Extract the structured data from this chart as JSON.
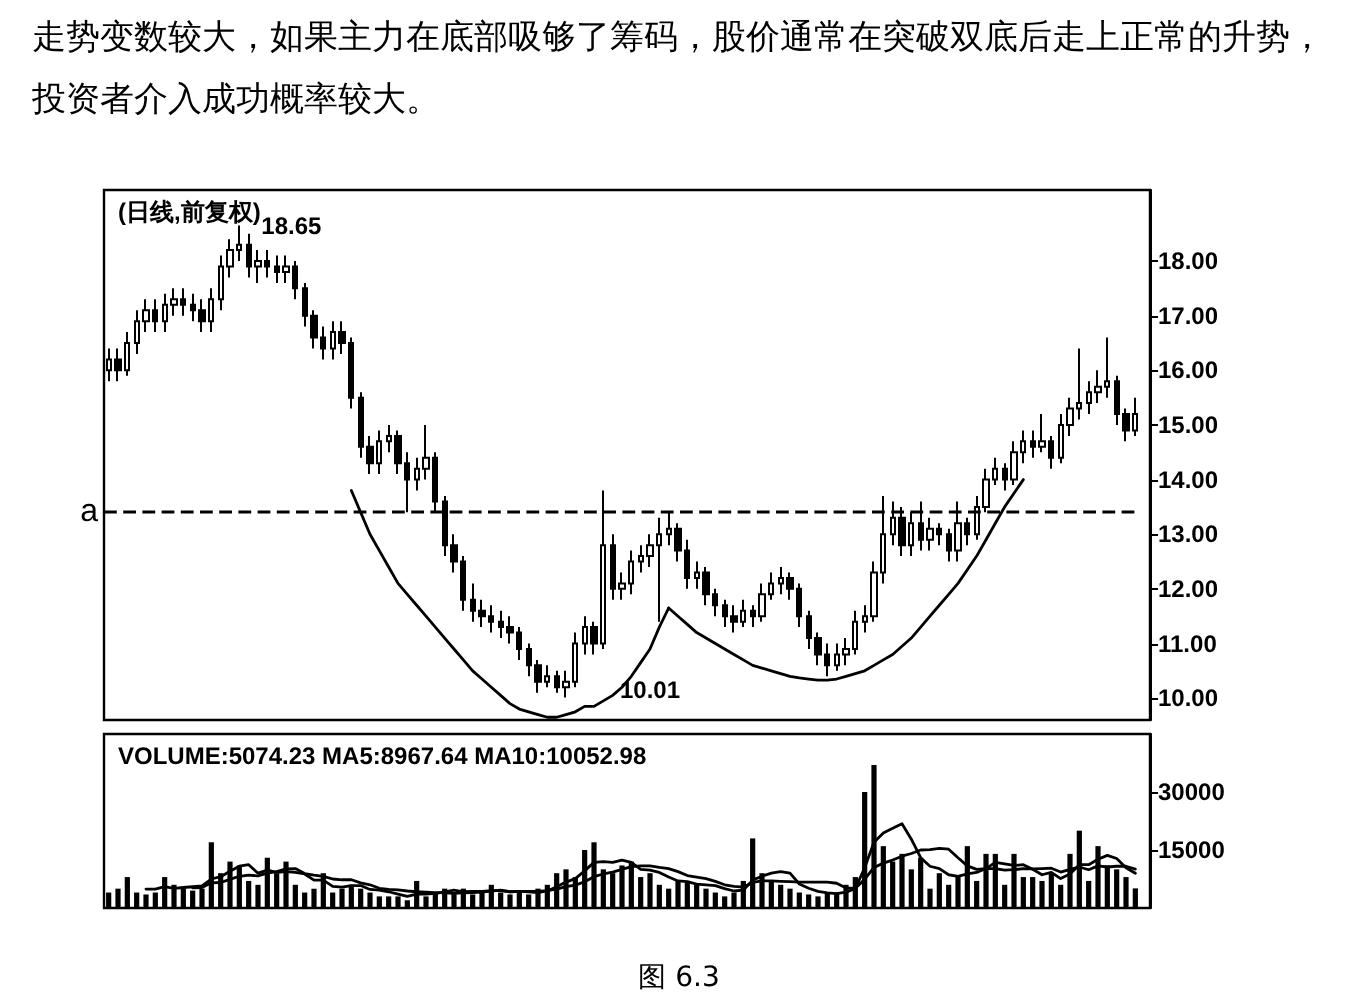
{
  "chart_data": [
    {
      "type": "candlestick",
      "title": "(日线,前复权)",
      "color": "#000000",
      "categories": [
        null,
        null,
        null,
        null,
        null,
        null,
        null,
        null,
        null,
        null,
        null,
        null,
        null,
        null,
        null,
        null,
        null,
        null,
        null,
        null,
        null,
        null,
        null,
        null,
        null,
        null,
        null,
        null,
        null,
        null,
        null,
        null,
        null,
        null,
        null,
        null,
        null,
        null,
        null,
        null,
        null,
        null,
        null,
        null,
        null,
        null,
        null,
        null,
        null,
        null,
        null,
        null,
        null,
        null,
        null,
        null,
        null,
        null,
        null,
        null,
        null,
        null,
        null,
        null,
        null,
        null,
        null,
        null,
        null,
        null,
        null,
        null,
        null,
        null,
        null,
        null,
        null,
        null,
        null,
        null,
        null,
        null,
        null,
        null,
        null,
        null,
        null,
        null,
        null,
        null,
        null,
        null,
        null,
        null,
        null,
        null,
        null,
        null,
        null,
        null,
        null,
        null,
        null,
        null,
        null,
        null,
        null,
        null,
        null,
        null,
        null
      ],
      "ohlc": [
        [
          16.0,
          16.4,
          15.8,
          16.2
        ],
        [
          16.2,
          16.4,
          15.8,
          16.0
        ],
        [
          16.0,
          16.7,
          15.9,
          16.5
        ],
        [
          16.5,
          17.1,
          16.3,
          16.9
        ],
        [
          16.9,
          17.3,
          16.7,
          17.1
        ],
        [
          17.1,
          17.3,
          16.7,
          16.9
        ],
        [
          16.9,
          17.4,
          16.7,
          17.2
        ],
        [
          17.2,
          17.5,
          17.0,
          17.3
        ],
        [
          17.3,
          17.5,
          17.0,
          17.2
        ],
        [
          17.2,
          17.4,
          16.9,
          17.1
        ],
        [
          17.1,
          17.3,
          16.7,
          16.9
        ],
        [
          16.9,
          17.5,
          16.7,
          17.3
        ],
        [
          17.3,
          18.1,
          17.1,
          17.9
        ],
        [
          17.9,
          18.4,
          17.7,
          18.2
        ],
        [
          18.2,
          18.65,
          18.0,
          18.3
        ],
        [
          18.3,
          18.5,
          17.7,
          17.9
        ],
        [
          17.9,
          18.2,
          17.6,
          18.0
        ],
        [
          18.0,
          18.2,
          17.7,
          17.9
        ],
        [
          17.9,
          18.1,
          17.6,
          17.8
        ],
        [
          17.8,
          18.1,
          17.6,
          17.9
        ],
        [
          17.9,
          18.0,
          17.3,
          17.5
        ],
        [
          17.5,
          17.6,
          16.8,
          17.0
        ],
        [
          17.0,
          17.1,
          16.4,
          16.6
        ],
        [
          16.6,
          16.8,
          16.2,
          16.4
        ],
        [
          16.4,
          16.9,
          16.2,
          16.7
        ],
        [
          16.7,
          16.9,
          16.3,
          16.5
        ],
        [
          16.5,
          16.6,
          15.3,
          15.5
        ],
        [
          15.5,
          15.6,
          14.4,
          14.6
        ],
        [
          14.6,
          14.8,
          14.1,
          14.3
        ],
        [
          14.3,
          14.9,
          14.1,
          14.7
        ],
        [
          14.7,
          15.0,
          14.5,
          14.8
        ],
        [
          14.8,
          14.9,
          14.1,
          14.3
        ],
        [
          14.3,
          14.5,
          13.4,
          14.0
        ],
        [
          14.0,
          14.4,
          13.8,
          14.2
        ],
        [
          14.2,
          15.0,
          14.0,
          14.4
        ],
        [
          14.4,
          14.5,
          13.4,
          13.6
        ],
        [
          13.6,
          13.7,
          12.6,
          12.8
        ],
        [
          12.8,
          13.0,
          12.3,
          12.5
        ],
        [
          12.5,
          12.6,
          11.6,
          11.8
        ],
        [
          11.8,
          12.1,
          11.4,
          11.6
        ],
        [
          11.6,
          11.8,
          11.3,
          11.5
        ],
        [
          11.5,
          11.7,
          11.2,
          11.4
        ],
        [
          11.4,
          11.6,
          11.1,
          11.3
        ],
        [
          11.3,
          11.5,
          11.0,
          11.2
        ],
        [
          11.2,
          11.3,
          10.7,
          10.9
        ],
        [
          10.9,
          11.0,
          10.4,
          10.6
        ],
        [
          10.6,
          10.7,
          10.1,
          10.3
        ],
        [
          10.3,
          10.6,
          10.2,
          10.4
        ],
        [
          10.4,
          10.5,
          10.1,
          10.2
        ],
        [
          10.2,
          10.5,
          10.01,
          10.3
        ],
        [
          10.3,
          11.2,
          10.2,
          11.0
        ],
        [
          11.0,
          11.5,
          10.8,
          11.3
        ],
        [
          11.3,
          11.4,
          10.8,
          11.0
        ],
        [
          11.0,
          13.8,
          10.9,
          12.8
        ],
        [
          12.8,
          13.0,
          11.8,
          12.0
        ],
        [
          12.0,
          12.3,
          11.8,
          12.1
        ],
        [
          12.1,
          12.7,
          11.9,
          12.5
        ],
        [
          12.5,
          12.8,
          12.3,
          12.6
        ],
        [
          12.6,
          13.0,
          12.4,
          12.8
        ],
        [
          12.8,
          13.3,
          11.4,
          13.0
        ],
        [
          13.0,
          13.4,
          12.8,
          13.1
        ],
        [
          13.1,
          13.2,
          12.5,
          12.7
        ],
        [
          12.7,
          12.9,
          12.0,
          12.2
        ],
        [
          12.2,
          12.5,
          12.0,
          12.3
        ],
        [
          12.3,
          12.4,
          11.7,
          11.9
        ],
        [
          11.9,
          12.0,
          11.5,
          11.7
        ],
        [
          11.7,
          11.8,
          11.3,
          11.5
        ],
        [
          11.5,
          11.7,
          11.2,
          11.4
        ],
        [
          11.4,
          11.8,
          11.3,
          11.6
        ],
        [
          11.6,
          11.7,
          11.3,
          11.5
        ],
        [
          11.5,
          12.1,
          11.4,
          11.9
        ],
        [
          11.9,
          12.3,
          11.8,
          12.1
        ],
        [
          12.1,
          12.4,
          11.9,
          12.2
        ],
        [
          12.2,
          12.3,
          11.8,
          12.0
        ],
        [
          12.0,
          12.1,
          11.3,
          11.5
        ],
        [
          11.5,
          11.6,
          10.9,
          11.1
        ],
        [
          11.1,
          11.2,
          10.6,
          10.8
        ],
        [
          10.8,
          11.0,
          10.4,
          10.6
        ],
        [
          10.6,
          11.0,
          10.5,
          10.8
        ],
        [
          10.8,
          11.1,
          10.6,
          10.9
        ],
        [
          10.9,
          11.6,
          10.8,
          11.4
        ],
        [
          11.4,
          11.7,
          11.2,
          11.5
        ],
        [
          11.5,
          12.5,
          11.4,
          12.3
        ],
        [
          12.3,
          13.7,
          12.1,
          13.0
        ],
        [
          13.0,
          13.6,
          12.8,
          13.3
        ],
        [
          13.3,
          13.5,
          12.6,
          12.8
        ],
        [
          12.8,
          13.4,
          12.6,
          13.2
        ],
        [
          13.2,
          13.6,
          12.7,
          12.9
        ],
        [
          12.9,
          13.3,
          12.7,
          13.1
        ],
        [
          13.1,
          13.2,
          12.8,
          13.0
        ],
        [
          13.0,
          13.1,
          12.5,
          12.7
        ],
        [
          12.7,
          13.6,
          12.5,
          13.2
        ],
        [
          13.2,
          13.3,
          12.8,
          13.0
        ],
        [
          13.0,
          13.7,
          12.9,
          13.5
        ],
        [
          13.5,
          14.2,
          13.4,
          14.0
        ],
        [
          14.0,
          14.4,
          13.9,
          14.2
        ],
        [
          14.2,
          14.3,
          13.8,
          14.0
        ],
        [
          14.0,
          14.7,
          13.9,
          14.5
        ],
        [
          14.5,
          14.9,
          14.3,
          14.7
        ],
        [
          14.7,
          14.9,
          14.4,
          14.6
        ],
        [
          14.6,
          15.2,
          14.5,
          14.7
        ],
        [
          14.7,
          14.8,
          14.2,
          14.4
        ],
        [
          14.4,
          15.2,
          14.3,
          15.0
        ],
        [
          15.0,
          15.5,
          14.8,
          15.3
        ],
        [
          15.3,
          16.4,
          15.1,
          15.4
        ],
        [
          15.4,
          15.8,
          15.2,
          15.6
        ],
        [
          15.6,
          16.0,
          15.4,
          15.7
        ],
        [
          15.7,
          16.6,
          15.5,
          15.8
        ],
        [
          15.8,
          15.9,
          15.0,
          15.2
        ],
        [
          15.2,
          15.3,
          14.7,
          14.9
        ],
        [
          14.9,
          15.5,
          14.8,
          15.2
        ]
      ],
      "series": [
        {
          "type": "line",
          "color": "#000000",
          "values": [
            null,
            null,
            null,
            null,
            null,
            null,
            null,
            null,
            null,
            null,
            null,
            null,
            null,
            null,
            null,
            null,
            null,
            null,
            null,
            null,
            null,
            null,
            null,
            null,
            null,
            null,
            13.8,
            13.4,
            13.0,
            12.7,
            12.4,
            12.1,
            11.9,
            11.7,
            11.5,
            11.3,
            11.1,
            10.9,
            10.7,
            10.5,
            10.35,
            10.2,
            10.05,
            9.9,
            9.8,
            9.75,
            9.7,
            9.65,
            9.65,
            9.7,
            9.75,
            9.85,
            9.85,
            9.95,
            10.05,
            10.2,
            10.4,
            10.65,
            10.9,
            11.3,
            11.65,
            null,
            null,
            null,
            null,
            null,
            null,
            null,
            null,
            null,
            null,
            null,
            null,
            null,
            null,
            null,
            null,
            null,
            null,
            null,
            null,
            null,
            null,
            null,
            null,
            null,
            null,
            null,
            null,
            null,
            null,
            null,
            null,
            null,
            null,
            null,
            null,
            null,
            null,
            null,
            null,
            null,
            null,
            null,
            null,
            null,
            null,
            null,
            null,
            null,
            null
          ]
        },
        {
          "type": "line",
          "color": "#000000",
          "values": [
            null,
            null,
            null,
            null,
            null,
            null,
            null,
            null,
            null,
            null,
            null,
            null,
            null,
            null,
            null,
            null,
            null,
            null,
            null,
            null,
            null,
            null,
            null,
            null,
            null,
            null,
            null,
            null,
            null,
            null,
            null,
            null,
            null,
            null,
            null,
            null,
            null,
            null,
            null,
            null,
            null,
            null,
            null,
            null,
            null,
            null,
            null,
            null,
            null,
            null,
            null,
            null,
            null,
            null,
            null,
            null,
            null,
            null,
            null,
            null,
            11.65,
            11.5,
            11.35,
            11.2,
            11.1,
            11.0,
            10.9,
            10.8,
            10.7,
            10.6,
            10.55,
            10.5,
            10.45,
            10.4,
            10.37,
            10.35,
            10.33,
            10.33,
            10.35,
            10.4,
            10.45,
            10.5,
            10.6,
            10.7,
            10.8,
            10.95,
            11.1,
            11.3,
            11.5,
            11.7,
            11.9,
            12.1,
            12.35,
            12.6,
            12.9,
            13.2,
            13.5,
            13.75,
            14.0,
            null,
            null,
            null,
            null,
            null,
            null,
            null,
            null,
            null,
            null,
            null,
            null
          ]
        }
      ],
      "ylim": [
        9.6,
        19.3
      ],
      "yticks": [
        {
          "value": 10,
          "label": "10.00"
        },
        {
          "value": 11,
          "label": "11.00"
        },
        {
          "value": 12,
          "label": "12.00"
        },
        {
          "value": 13,
          "label": "13.00"
        },
        {
          "value": 14,
          "label": "14.00"
        },
        {
          "value": 15,
          "label": "15.00"
        },
        {
          "value": 16,
          "label": "16.00"
        },
        {
          "value": 17,
          "label": "17.00"
        },
        {
          "value": 18,
          "label": "18.00"
        }
      ],
      "ref_lines": [
        {
          "axis": "y",
          "value": 13.4,
          "label": "a",
          "line_style": "dashed",
          "color": "#000000"
        }
      ],
      "annotations": [
        "走势变数较大，如果主力在底部吸够了筹码，股价通常在突破双底后走上正常的升势，投资者介入成功概率较大。",
        "18.65",
        "10.01",
        "图 6.3"
      ],
      "tick_labels": "y"
    },
    {
      "type": "bar",
      "title": "VOLUME:5074.23 MA5:8967.64 MA10:10052.98",
      "categories": [
        null,
        null,
        null,
        null,
        null,
        null,
        null,
        null,
        null,
        null,
        null,
        null,
        null,
        null,
        null,
        null,
        null,
        null,
        null,
        null,
        null,
        null,
        null,
        null,
        null,
        null,
        null,
        null,
        null,
        null,
        null,
        null,
        null,
        null,
        null,
        null,
        null,
        null,
        null,
        null,
        null,
        null,
        null,
        null,
        null,
        null,
        null,
        null,
        null,
        null,
        null,
        null,
        null,
        null,
        null,
        null,
        null,
        null,
        null,
        null,
        null,
        null,
        null,
        null,
        null,
        null,
        null,
        null,
        null,
        null,
        null,
        null,
        null,
        null,
        null,
        null,
        null,
        null,
        null,
        null,
        null,
        null,
        null,
        null,
        null,
        null,
        null,
        null,
        null,
        null,
        null,
        null,
        null,
        null,
        null,
        null,
        null,
        null,
        null,
        null,
        null,
        null,
        null,
        null,
        null,
        null,
        null,
        null,
        null,
        null,
        null
      ],
      "series": [
        {
          "color": "#000000",
          "values": [
            4000,
            5000,
            8000,
            4000,
            3500,
            4000,
            8000,
            6000,
            5000,
            4500,
            5000,
            17000,
            9000,
            12000,
            11000,
            7000,
            6000,
            13000,
            9000,
            12000,
            6000,
            4000,
            5000,
            9000,
            4000,
            5000,
            6000,
            5000,
            4000,
            3000,
            3000,
            3000,
            2000,
            7000,
            3000,
            4000,
            5000,
            4000,
            5000,
            3500,
            4000,
            6000,
            4000,
            3500,
            4000,
            3500,
            5000,
            6000,
            9000,
            10000,
            8000,
            15000,
            17000,
            10000,
            9000,
            11000,
            12000,
            8000,
            9000,
            6000,
            5000,
            7000,
            7000,
            6000,
            5000,
            4000,
            3000,
            4000,
            7000,
            18000,
            9000,
            7000,
            6000,
            5000,
            4000,
            3500,
            3000,
            4000,
            4000,
            6000,
            8000,
            30000,
            37000,
            16000,
            12000,
            14000,
            10000,
            13000,
            5000,
            9000,
            6000,
            8000,
            16000,
            7000,
            14000,
            14000,
            6000,
            14000,
            8000,
            8000,
            7000,
            9000,
            6000,
            14000,
            20000,
            7000,
            16000,
            11000,
            10000,
            8000,
            5074.23
          ]
        },
        {
          "type": "line",
          "color": "#000000",
          "values": [
            null,
            null,
            null,
            null,
            4900,
            4900,
            5500,
            5100,
            5300,
            5500,
            5700,
            7500,
            8100,
            9500,
            10800,
            11200,
            9000,
            9800,
            9200,
            9400,
            9200,
            8800,
            7200,
            7200,
            5600,
            5400,
            5800,
            5800,
            4800,
            4600,
            4200,
            3600,
            3000,
            3600,
            3600,
            3800,
            4200,
            4600,
            4200,
            4300,
            4300,
            4500,
            4500,
            4200,
            4300,
            4200,
            4000,
            4400,
            5500,
            6700,
            7600,
            9600,
            11800,
            12000,
            11800,
            12400,
            11800,
            10000,
            9800,
            9200,
            8000,
            7000,
            6800,
            6200,
            6000,
            5800,
            5000,
            4400,
            4600,
            7200,
            8200,
            9000,
            9400,
            9000,
            6200,
            5100,
            4300,
            3900,
            3700,
            4100,
            5000,
            10400,
            17000,
            19400,
            20600,
            21800,
            17800,
            13000,
            10800,
            10200,
            8600,
            8200,
            8800,
            9200,
            10200,
            11800,
            11400,
            11000,
            11200,
            10000,
            8600,
            9200,
            7600,
            8800,
            11200,
            11200,
            12600,
            13600,
            12800,
            10400,
            8967.64
          ]
        },
        {
          "type": "line",
          "color": "#000000",
          "values": [
            null,
            null,
            null,
            null,
            null,
            null,
            null,
            null,
            null,
            5200,
            5300,
            6500,
            6600,
            7400,
            8200,
            8500,
            8300,
            9000,
            9400,
            10100,
            10200,
            8900,
            8500,
            8200,
            7500,
            7300,
            7300,
            6500,
            6000,
            5100,
            4800,
            4700,
            4400,
            4200,
            4100,
            4000,
            3900,
            3800,
            3900,
            4000,
            4100,
            4400,
            4600,
            4200,
            4300,
            4300,
            4300,
            4500,
            4900,
            5500,
            5900,
            6800,
            8100,
            8800,
            9300,
            10000,
            10700,
            10900,
            10900,
            10500,
            10200,
            9400,
            8400,
            8000,
            7600,
            6900,
            6000,
            5600,
            5400,
            6600,
            7000,
            7000,
            6900,
            6800,
            6700,
            6700,
            6700,
            6700,
            6400,
            5200,
            5100,
            7400,
            10500,
            11600,
            12400,
            13400,
            14100,
            15000,
            15100,
            15400,
            15200,
            13000,
            10900,
            10000,
            10200,
            10200,
            9800,
            9900,
            10200,
            10100,
            10200,
            10300,
            9300,
            10000,
            10600,
            9900,
            10900,
            10600,
            10800,
            10800,
            10052.98
          ]
        }
      ],
      "ylim": [
        0,
        45000
      ],
      "yticks": [
        15000,
        30000
      ],
      "tick_labels": "y"
    }
  ]
}
